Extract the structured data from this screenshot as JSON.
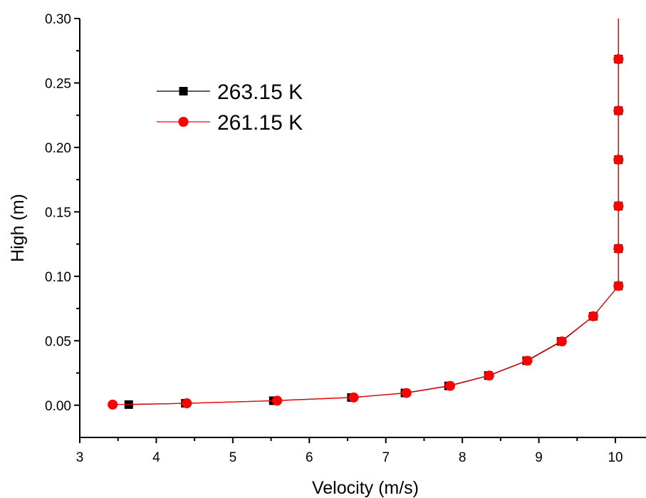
{
  "chart_data": {
    "type": "line",
    "xlabel": "Velocity (m/s)",
    "ylabel": "High (m)",
    "xlim": [
      3,
      10.4
    ],
    "ylim": [
      -0.025,
      0.3
    ],
    "xticks": [
      3,
      4,
      5,
      6,
      7,
      8,
      9,
      10
    ],
    "yticks": [
      0.0,
      0.05,
      0.1,
      0.15,
      0.2,
      0.25,
      0.3
    ],
    "xtick_labels": [
      "3",
      "4",
      "5",
      "6",
      "7",
      "8",
      "9",
      "10"
    ],
    "ytick_labels": [
      "0.00",
      "0.05",
      "0.10",
      "0.15",
      "0.20",
      "0.25",
      "0.30"
    ],
    "grid": false,
    "legend_position": "top-left",
    "series": [
      {
        "name": "263.15 K",
        "color": "#000000",
        "marker": "square",
        "x": [
          3.64,
          4.38,
          5.53,
          6.55,
          7.25,
          7.82,
          8.34,
          8.84,
          9.29,
          9.71,
          10.04,
          10.04,
          10.04,
          10.04,
          10.04,
          10.04,
          10.04
        ],
        "y": [
          0.0005,
          0.0015,
          0.0035,
          0.006,
          0.0095,
          0.015,
          0.023,
          0.0345,
          0.0495,
          0.069,
          0.0925,
          0.1215,
          0.1545,
          0.1905,
          0.2285,
          0.2685,
          0.3
        ]
      },
      {
        "name": "261.15 K",
        "color": "#ff0000",
        "marker": "circle",
        "x": [
          3.43,
          4.4,
          5.58,
          6.58,
          7.27,
          7.84,
          8.35,
          8.85,
          9.3,
          9.71,
          10.04,
          10.04,
          10.04,
          10.04,
          10.04,
          10.04,
          10.04
        ],
        "y": [
          0.0005,
          0.0015,
          0.0035,
          0.006,
          0.0095,
          0.015,
          0.023,
          0.0345,
          0.0495,
          0.069,
          0.0925,
          0.1215,
          0.1545,
          0.1905,
          0.2285,
          0.2685,
          0.3
        ]
      }
    ]
  }
}
